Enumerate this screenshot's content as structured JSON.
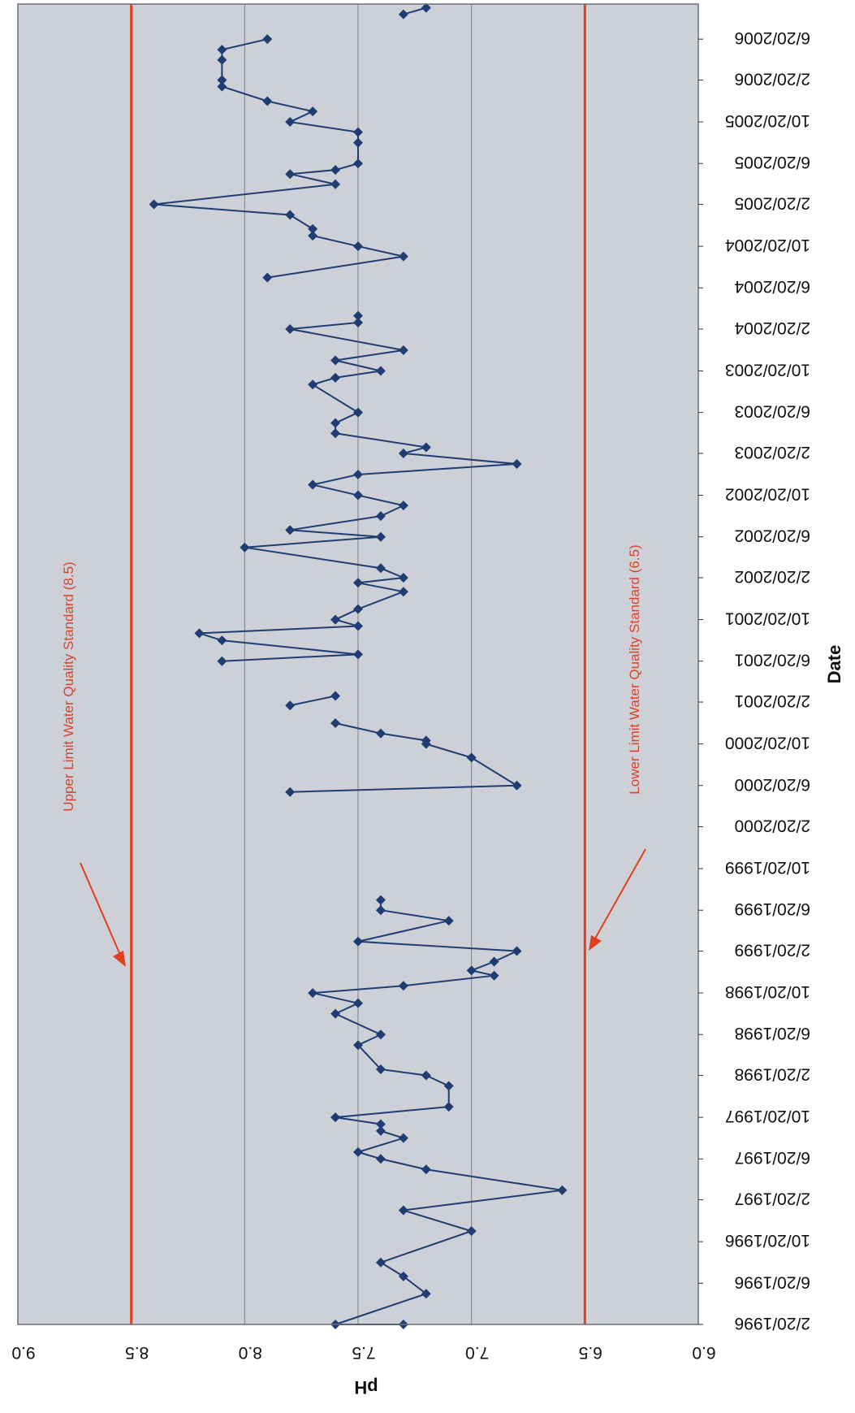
{
  "chart_data": {
    "type": "line",
    "orientation": "rotated 90 degrees clockwise (Date runs down the right side, pH runs right-to-left along the bottom)",
    "xlabel": "Date",
    "ylabel": "pH",
    "ylim": [
      6.0,
      9.0
    ],
    "yticks": [
      "6.0",
      "6.5",
      "7.0",
      "7.5",
      "8.0",
      "8.5",
      "9.0"
    ],
    "xticks": [
      "2/20/1996",
      "6/20/1996",
      "10/20/1996",
      "2/20/1997",
      "6/20/1997",
      "10/20/1997",
      "2/20/1998",
      "6/20/1998",
      "10/20/1998",
      "2/20/1999",
      "6/20/1999",
      "10/20/1999",
      "2/20/2000",
      "6/20/2000",
      "10/20/2000",
      "2/20/2001",
      "6/20/2001",
      "10/20/2001",
      "2/20/2002",
      "6/20/2002",
      "10/20/2002",
      "2/20/2003",
      "6/20/2003",
      "10/20/2003",
      "2/20/2004",
      "6/20/2004",
      "10/20/2004",
      "2/20/2005",
      "6/20/2005",
      "10/20/2005",
      "2/20/2006",
      "6/20/2006"
    ],
    "grid": "horizontal gridlines at each 0.5 pH",
    "colors": {
      "series": "#1f3d72",
      "limits": "#e0401f",
      "plot_bg": "#cdd0d6",
      "grid": "#7a7f88"
    },
    "reference_lines": [
      {
        "value": 8.5,
        "label": "Upper Limit Water Quality Standard (8.5)"
      },
      {
        "value": 6.5,
        "label": "Lower Limit Water Quality Standard (6.5)"
      }
    ],
    "series": [
      {
        "marker": "diamond",
        "segments": [
          [
            [
              "1996-02-20",
              7.3
            ],
            [
              "1996-02-20",
              7.6
            ],
            [
              "1996-05-20",
              7.2
            ],
            [
              "1996-07-10",
              7.3
            ],
            [
              "1996-08-20",
              7.4
            ],
            [
              "1996-11-20",
              7.0
            ],
            [
              "1997-01-20",
              7.3
            ],
            [
              "1997-03-20",
              6.6
            ],
            [
              "1997-05-20",
              7.2
            ],
            [
              "1997-06-20",
              7.4
            ],
            [
              "1997-07-10",
              7.5
            ],
            [
              "1997-08-20",
              7.3
            ],
            [
              "1997-09-10",
              7.4
            ],
            [
              "1997-09-30",
              7.4
            ],
            [
              "1997-10-20",
              7.6
            ],
            [
              "1997-11-20",
              7.1
            ],
            [
              "1998-01-20",
              7.1
            ],
            [
              "1998-02-20",
              7.2
            ],
            [
              "1998-03-10",
              7.4
            ],
            [
              "1998-05-20",
              7.5
            ],
            [
              "1998-06-20",
              7.4
            ],
            [
              "1998-08-20",
              7.6
            ],
            [
              "1998-09-20",
              7.5
            ],
            [
              "1998-10-20",
              7.7
            ],
            [
              "1998-11-10",
              7.3
            ],
            [
              "1998-12-10",
              6.9
            ],
            [
              "1998-12-25",
              7.0
            ],
            [
              "1999-01-20",
              6.9
            ],
            [
              "1999-02-20",
              6.8
            ],
            [
              "1999-03-20",
              7.5
            ],
            [
              "1999-05-20",
              7.1
            ],
            [
              "1999-06-20",
              7.4
            ],
            [
              "1999-07-20",
              7.4
            ]
          ],
          [
            [
              "2000-06-01",
              7.8
            ],
            [
              "2000-06-20",
              6.8
            ],
            [
              "2000-09-10",
              7.0
            ],
            [
              "2000-10-20",
              7.2
            ],
            [
              "2000-10-30",
              7.2
            ],
            [
              "2000-11-20",
              7.4
            ],
            [
              "2000-12-20",
              7.6
            ]
          ],
          [
            [
              "2001-02-10",
              7.8
            ],
            [
              "2001-03-10",
              7.6
            ]
          ],
          [
            [
              "2001-06-20",
              8.1
            ],
            [
              "2001-07-10",
              7.5
            ],
            [
              "2001-08-20",
              8.1
            ],
            [
              "2001-09-10",
              8.2
            ],
            [
              "2001-10-01",
              7.5
            ],
            [
              "2001-10-20",
              7.6
            ],
            [
              "2001-11-20",
              7.5
            ],
            [
              "2002-01-10",
              7.3
            ],
            [
              "2002-02-05",
              7.5
            ],
            [
              "2002-02-20",
              7.3
            ],
            [
              "2002-03-20",
              7.4
            ],
            [
              "2002-05-20",
              8.0
            ],
            [
              "2002-06-20",
              7.4
            ],
            [
              "2002-07-10",
              7.8
            ],
            [
              "2002-08-20",
              7.4
            ],
            [
              "2002-09-20",
              7.3
            ],
            [
              "2002-10-20",
              7.5
            ],
            [
              "2002-11-20",
              7.7
            ],
            [
              "2002-12-20",
              7.5
            ],
            [
              "2003-01-20",
              6.8
            ],
            [
              "2003-02-20",
              7.3
            ],
            [
              "2003-03-10",
              7.2
            ],
            [
              "2003-04-20",
              7.6
            ],
            [
              "2003-05-20",
              7.6
            ],
            [
              "2003-06-20",
              7.5
            ],
            [
              "2003-09-10",
              7.7
            ],
            [
              "2003-09-30",
              7.6
            ],
            [
              "2003-10-20",
              7.4
            ],
            [
              "2003-11-20",
              7.6
            ],
            [
              "2003-12-20",
              7.3
            ],
            [
              "2004-02-20",
              7.8
            ],
            [
              "2004-03-10",
              7.5
            ],
            [
              "2004-03-30",
              7.5
            ]
          ],
          [
            [
              "2004-07-20",
              7.9
            ],
            [
              "2004-09-20",
              7.3
            ],
            [
              "2004-10-20",
              7.5
            ],
            [
              "2004-11-20",
              7.7
            ],
            [
              "2004-12-10",
              7.7
            ],
            [
              "2005-01-20",
              7.8
            ],
            [
              "2005-02-20",
              8.4
            ],
            [
              "2005-04-20",
              7.6
            ],
            [
              "2005-05-20",
              7.8
            ],
            [
              "2005-06-01",
              7.6
            ],
            [
              "2005-06-20",
              7.5
            ],
            [
              "2005-08-20",
              7.5
            ],
            [
              "2005-09-20",
              7.5
            ],
            [
              "2005-10-20",
              7.8
            ],
            [
              "2005-11-20",
              7.7
            ],
            [
              "2005-12-20",
              7.9
            ],
            [
              "2006-02-01",
              8.1
            ],
            [
              "2006-02-20",
              8.1
            ],
            [
              "2006-04-20",
              8.1
            ],
            [
              "2006-05-20",
              8.1
            ],
            [
              "2006-06-20",
              7.9
            ]
          ],
          [
            [
              "2006-09-01",
              7.3
            ],
            [
              "2006-09-20",
              7.2
            ]
          ]
        ]
      }
    ]
  }
}
